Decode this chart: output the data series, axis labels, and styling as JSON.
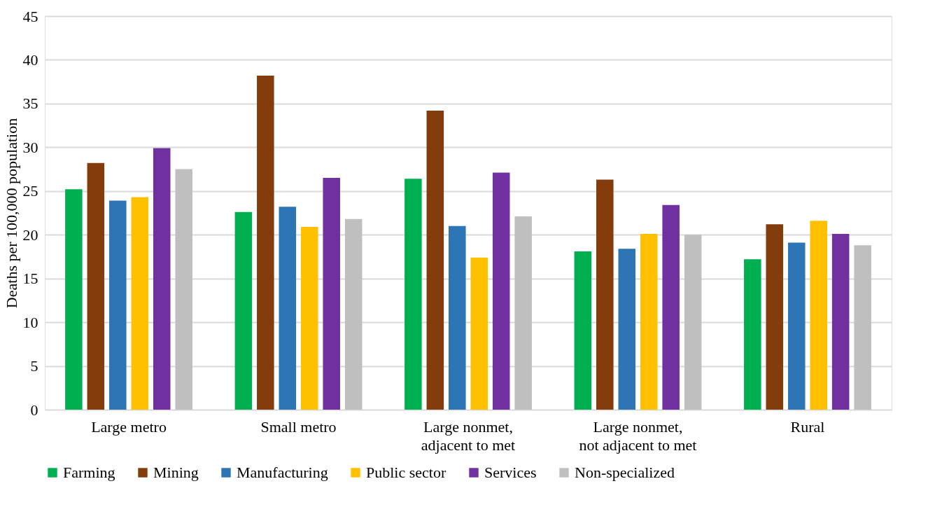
{
  "chart_data": {
    "type": "bar",
    "ylabel": "Deaths per 100,000 population",
    "categories": [
      "Large metro",
      "Small metro",
      "Large nonmet,\nadjacent to met",
      "Large nonmet,\nnot adjacent to met",
      "Rural"
    ],
    "series": [
      {
        "name": "Farming",
        "color": "#00b050",
        "values": [
          25.2,
          22.6,
          26.4,
          18.1,
          17.2
        ]
      },
      {
        "name": "Mining",
        "color": "#843c0c",
        "values": [
          28.2,
          38.2,
          34.2,
          26.3,
          21.2
        ]
      },
      {
        "name": "Manufacturing",
        "color": "#2e75b6",
        "values": [
          23.9,
          23.2,
          21.0,
          18.4,
          19.1
        ]
      },
      {
        "name": "Public sector",
        "color": "#ffc000",
        "values": [
          24.3,
          20.9,
          17.4,
          20.1,
          21.6
        ]
      },
      {
        "name": "Services",
        "color": "#7030a0",
        "values": [
          29.9,
          26.5,
          27.1,
          23.4,
          20.1
        ]
      },
      {
        "name": "Non-specialized",
        "color": "#bfbfbf",
        "values": [
          27.5,
          21.8,
          22.1,
          20.0,
          18.8
        ]
      }
    ],
    "ylim": [
      0,
      45
    ],
    "yticks": [
      0,
      5,
      10,
      15,
      20,
      25,
      30,
      35,
      40,
      45
    ],
    "grid": "y",
    "legend": "bottom"
  }
}
